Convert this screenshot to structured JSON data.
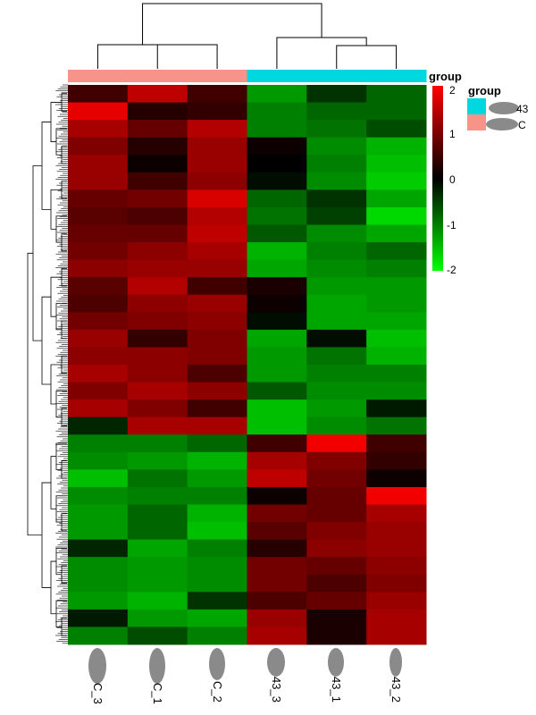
{
  "chart_data": {
    "type": "heatmap",
    "title": "",
    "columns": [
      "C_3",
      "C_1",
      "C_2",
      "43_3",
      "43_1",
      "43_2"
    ],
    "column_groups": [
      "C",
      "C",
      "C",
      "43",
      "43",
      "43"
    ],
    "annotation_title": "group",
    "group_legend": {
      "title": "group",
      "items": [
        {
          "label": "43",
          "color": "#00d8e0"
        },
        {
          "label": "C",
          "color": "#f8938a"
        }
      ]
    },
    "color_scale": {
      "min": -2,
      "max": 2,
      "colors": [
        "#00ff00",
        "#000000",
        "#ff0000"
      ],
      "ticks": [
        "2",
        "1",
        "0",
        "-1",
        "-2"
      ]
    },
    "row_dendrogram": true,
    "column_dendrogram": true,
    "values": [
      [
        0.5,
        1.5,
        0.5,
        -1.2,
        -0.4,
        -0.8
      ],
      [
        1.8,
        0.3,
        0.4,
        -1.0,
        -0.8,
        -0.8
      ],
      [
        1.3,
        0.8,
        1.4,
        -1.0,
        -0.9,
        -0.6
      ],
      [
        1.0,
        0.3,
        1.2,
        0.1,
        -1.1,
        -1.4
      ],
      [
        1.2,
        0.1,
        1.2,
        0.0,
        -1.0,
        -1.5
      ],
      [
        1.2,
        0.5,
        1.1,
        -0.1,
        -1.1,
        -1.6
      ],
      [
        0.8,
        0.9,
        1.7,
        -0.8,
        -0.4,
        -1.3
      ],
      [
        0.7,
        0.6,
        1.4,
        -0.9,
        -0.5,
        -1.7
      ],
      [
        0.8,
        0.8,
        1.5,
        -0.7,
        -1.1,
        -1.3
      ],
      [
        0.9,
        1.1,
        1.3,
        -1.4,
        -1.0,
        -0.8
      ],
      [
        1.1,
        1.2,
        1.2,
        -1.3,
        -1.1,
        -1.0
      ],
      [
        0.7,
        1.4,
        0.5,
        0.2,
        -1.2,
        -1.2
      ],
      [
        0.6,
        1.1,
        1.2,
        0.1,
        -1.3,
        -1.2
      ],
      [
        0.9,
        1.0,
        1.1,
        -0.1,
        -1.3,
        -1.3
      ],
      [
        1.2,
        0.4,
        1.0,
        -1.3,
        -0.1,
        -1.5
      ],
      [
        1.1,
        1.1,
        1.0,
        -1.2,
        -0.9,
        -1.4
      ],
      [
        1.3,
        1.1,
        0.6,
        -1.2,
        -1.0,
        -1.0
      ],
      [
        1.0,
        1.3,
        1.1,
        -0.7,
        -1.1,
        -1.1
      ],
      [
        1.3,
        1.0,
        0.5,
        -1.5,
        -1.2,
        -0.2
      ],
      [
        -0.3,
        1.3,
        1.3,
        -1.5,
        -1.1,
        -0.9
      ],
      [
        -1.0,
        -1.0,
        -0.8,
        0.5,
        1.9,
        0.5
      ],
      [
        -1.1,
        -1.2,
        -1.4,
        1.3,
        1.0,
        0.4
      ],
      [
        -1.5,
        -0.9,
        -1.2,
        1.5,
        0.9,
        0.1
      ],
      [
        -1.1,
        -1.0,
        -1.0,
        0.1,
        0.8,
        1.9
      ],
      [
        -1.2,
        -0.8,
        -1.4,
        0.9,
        0.8,
        1.3
      ],
      [
        -1.2,
        -0.8,
        -1.5,
        0.7,
        1.0,
        1.2
      ],
      [
        -0.3,
        -1.3,
        -1.0,
        0.3,
        1.1,
        1.2
      ],
      [
        -1.1,
        -1.2,
        -1.1,
        0.9,
        0.8,
        1.1
      ],
      [
        -1.1,
        -1.2,
        -1.1,
        0.9,
        0.6,
        1.0
      ],
      [
        -1.2,
        -1.4,
        -0.4,
        0.6,
        0.8,
        1.2
      ],
      [
        -0.2,
        -1.2,
        -1.3,
        1.2,
        0.2,
        1.3
      ],
      [
        -1.0,
        -0.6,
        -1.0,
        1.3,
        0.2,
        1.3
      ]
    ]
  }
}
